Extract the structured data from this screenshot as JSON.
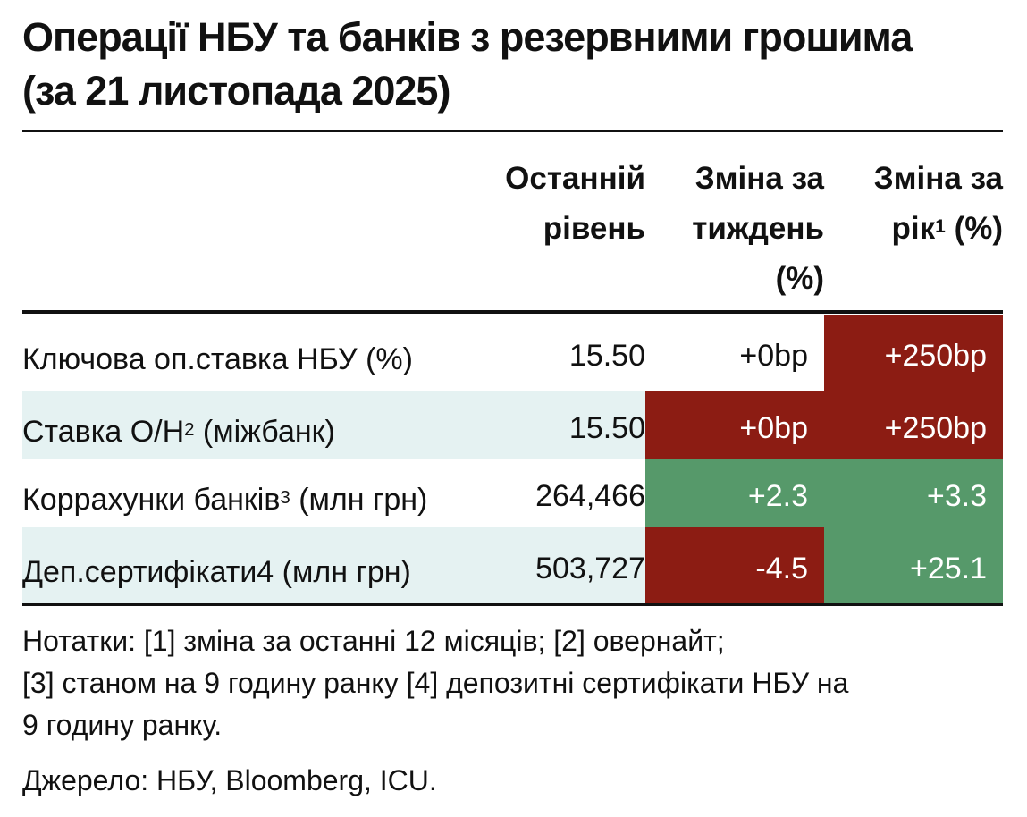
{
  "header": {
    "title": "Операції НБУ та банків з резервними грошима (за 21 листопада 2025)"
  },
  "table": {
    "columns": [
      {
        "text": "Останній рівень"
      },
      {
        "text": "Зміна за тиждень (%)"
      },
      {
        "text": "Зміна за рік",
        "sup": "1",
        "rest": " (%)"
      }
    ],
    "rows": [
      {
        "label": {
          "text": "Ключова оп.ставка НБУ (%)"
        },
        "shaded": false,
        "cells": [
          {
            "text": "15.50"
          },
          {
            "text": "+0bp"
          },
          {
            "text": "+250bp",
            "fill": "#8c1c13"
          }
        ]
      },
      {
        "label": {
          "text": "Ставка О/Н",
          "sup": "2",
          "rest": " (міжбанк)"
        },
        "shaded": true,
        "cells": [
          {
            "text": "15.50"
          },
          {
            "text": "+0bp",
            "fill": "#8c1c13"
          },
          {
            "text": "+250bp",
            "fill": "#8c1c13"
          }
        ]
      },
      {
        "label": {
          "text": "Коррахунки банків",
          "sup": "3",
          "rest": " (млн грн)"
        },
        "shaded": false,
        "cells": [
          {
            "text": "264,466"
          },
          {
            "text": "+2.3",
            "fill": "#56996a"
          },
          {
            "text": "+3.3",
            "fill": "#56996a"
          }
        ]
      },
      {
        "label": {
          "text": "Деп.сертифікати4 (млн грн)"
        },
        "shaded": true,
        "cells": [
          {
            "text": "503,727"
          },
          {
            "text": "-4.5",
            "fill": "#8c1c13"
          },
          {
            "text": "+25.1",
            "fill": "#56996a"
          }
        ]
      }
    ]
  },
  "notes": [
    "Нотатки: [1] зміна за останні 12 місяців; [2] овернайт;",
    "[3] станом на 9 годину ранку [4] депозитні сертифікати НБУ на",
    "9 годину ранку."
  ],
  "source": "Джерело: НБУ, Bloomberg, ICU."
}
